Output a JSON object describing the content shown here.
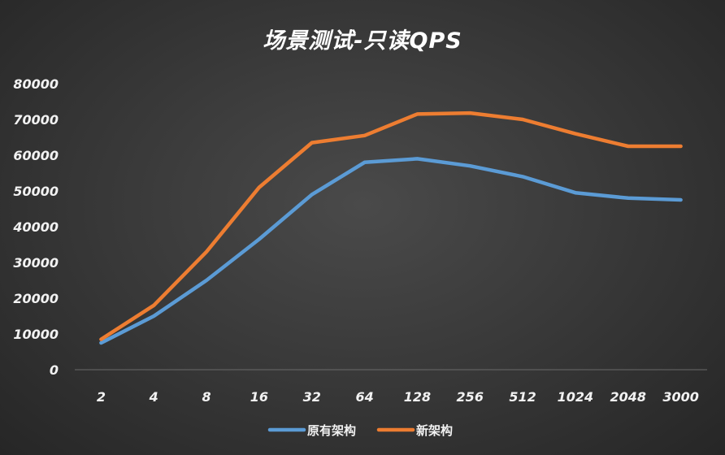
{
  "chart_data": {
    "type": "line",
    "title": "场景测试-只读QPS",
    "xlabel": "",
    "ylabel": "",
    "categories": [
      "2",
      "4",
      "8",
      "16",
      "32",
      "64",
      "128",
      "256",
      "512",
      "1024",
      "2048",
      "3000"
    ],
    "ylim": [
      0,
      80000
    ],
    "yticks": [
      "0",
      "10000",
      "20000",
      "30000",
      "40000",
      "50000",
      "60000",
      "70000",
      "80000"
    ],
    "grid": false,
    "legend_position": "bottom",
    "series": [
      {
        "name": "原有架构",
        "color": "#5b9bd5",
        "values": [
          7500,
          15000,
          25000,
          36500,
          49000,
          58000,
          59000,
          57000,
          54000,
          49500,
          48000,
          47500
        ]
      },
      {
        "name": "新架构",
        "color": "#ed7d31",
        "values": [
          8500,
          18000,
          33000,
          51000,
          63500,
          65500,
          71500,
          71800,
          70000,
          66000,
          62500,
          62500
        ]
      }
    ]
  }
}
